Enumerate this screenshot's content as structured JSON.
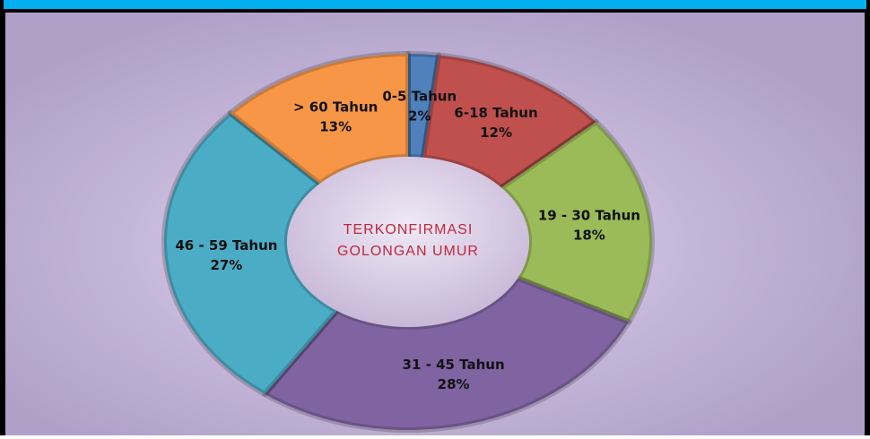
{
  "chart_data": {
    "type": "donut",
    "center_text": [
      "TERKONFIRMASI",
      "GOLONGAN UMUR"
    ],
    "categories": [
      "0-5 Tahun",
      "6-18 Tahun",
      "19 - 30 Tahun",
      "31 - 45 Tahun",
      "46 - 59 Tahun",
      "> 60 Tahun"
    ],
    "values": [
      2,
      12,
      18,
      28,
      27,
      13
    ],
    "value_labels": [
      "2%",
      "12%",
      "18%",
      "28%",
      "27%",
      "13%"
    ],
    "colors": [
      "#4f81bd",
      "#c0504d",
      "#9bbb59",
      "#8064a2",
      "#4bacc6",
      "#f79646"
    ]
  }
}
